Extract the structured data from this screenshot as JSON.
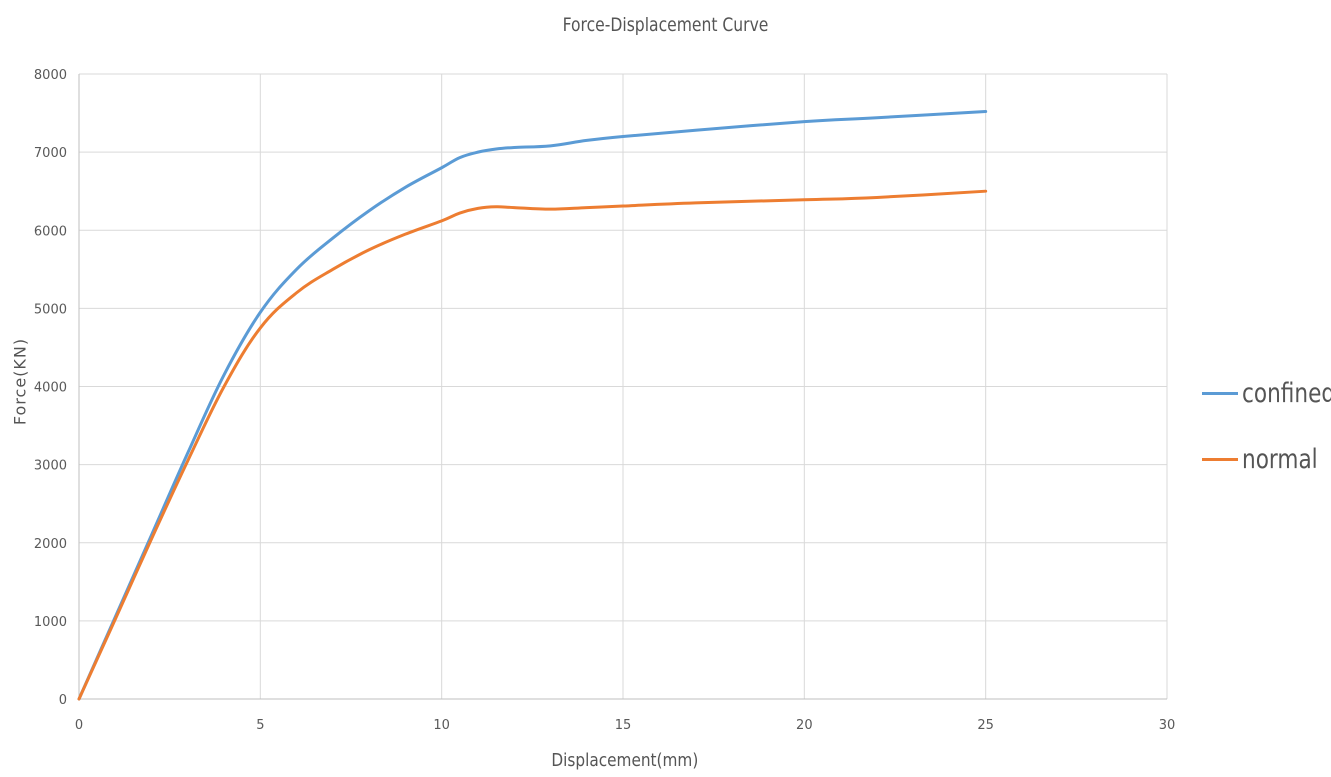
{
  "chart_data": {
    "type": "line",
    "title": "Force-Displacement Curve",
    "xlabel": "Displacement(mm)",
    "ylabel": "Force(KN)",
    "xlim": [
      0,
      30
    ],
    "ylim": [
      0,
      8000
    ],
    "xticks": [
      0,
      5,
      10,
      15,
      20,
      25,
      30
    ],
    "yticks": [
      0,
      1000,
      2000,
      3000,
      4000,
      5000,
      6000,
      7000,
      8000
    ],
    "grid": true,
    "legend": "right",
    "series": [
      {
        "name": "confined",
        "color": "#5b9bd5",
        "points": [
          [
            0,
            0
          ],
          [
            1,
            1050
          ],
          [
            2,
            2100
          ],
          [
            3,
            3150
          ],
          [
            4,
            4150
          ],
          [
            5,
            4950
          ],
          [
            6,
            5500
          ],
          [
            7,
            5900
          ],
          [
            8,
            6250
          ],
          [
            9,
            6550
          ],
          [
            10,
            6800
          ],
          [
            10.5,
            6930
          ],
          [
            11,
            7000
          ],
          [
            11.5,
            7040
          ],
          [
            12,
            7060
          ],
          [
            13,
            7080
          ],
          [
            14,
            7150
          ],
          [
            15,
            7200
          ],
          [
            17,
            7280
          ],
          [
            20,
            7390
          ],
          [
            22,
            7440
          ],
          [
            25,
            7520
          ]
        ]
      },
      {
        "name": "normal",
        "color": "#ed7d31",
        "points": [
          [
            0,
            0
          ],
          [
            1,
            1020
          ],
          [
            2,
            2050
          ],
          [
            3,
            3050
          ],
          [
            4,
            4000
          ],
          [
            5,
            4750
          ],
          [
            6,
            5200
          ],
          [
            7,
            5500
          ],
          [
            8,
            5750
          ],
          [
            9,
            5950
          ],
          [
            10,
            6120
          ],
          [
            10.5,
            6220
          ],
          [
            11,
            6280
          ],
          [
            11.5,
            6300
          ],
          [
            12,
            6290
          ],
          [
            13,
            6270
          ],
          [
            14,
            6290
          ],
          [
            15,
            6310
          ],
          [
            17,
            6350
          ],
          [
            20,
            6390
          ],
          [
            22,
            6420
          ],
          [
            25,
            6500
          ]
        ]
      }
    ]
  }
}
